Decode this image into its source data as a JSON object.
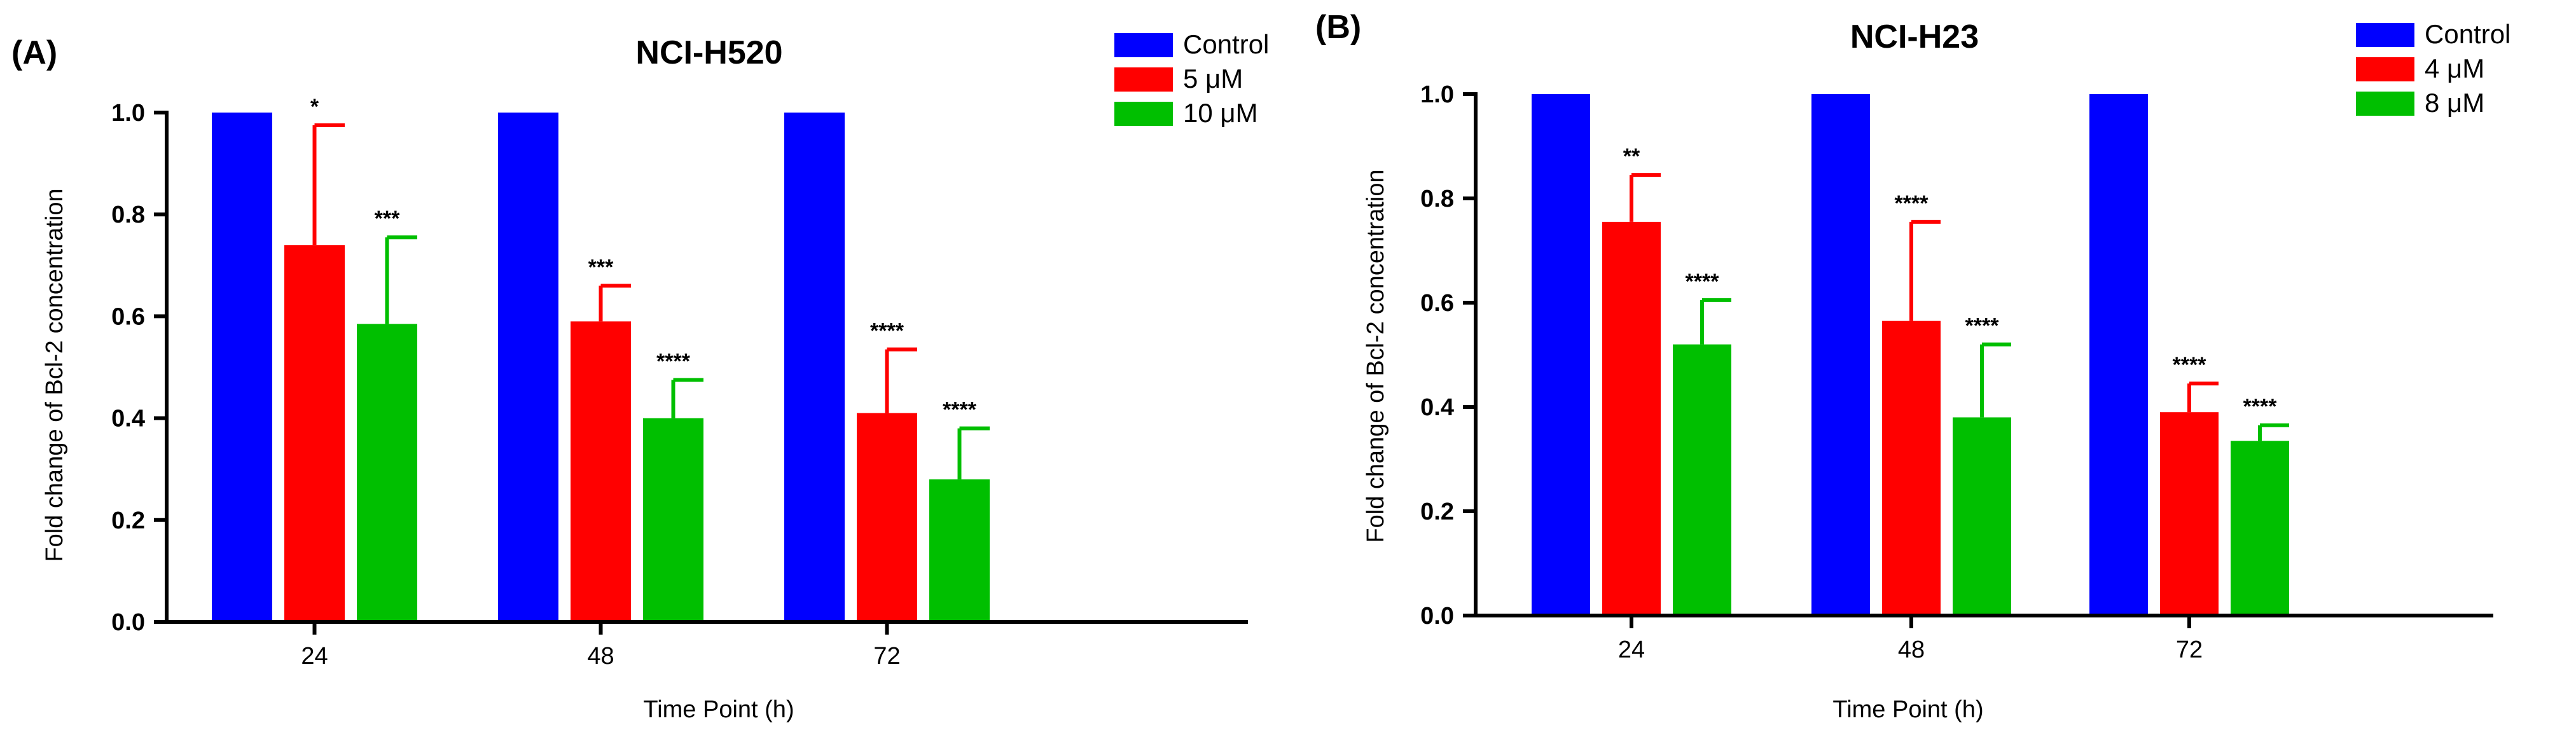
{
  "colors": {
    "Control": "#0000ff",
    "low": "#ff0000",
    "high": "#00bf00"
  },
  "chart_data": [
    {
      "type": "bar",
      "panel_label": "(A)",
      "title": "NCI-H520",
      "xlabel": "Time Point (h)",
      "ylabel": "Fold change of Bcl-2 concentration",
      "categories": [
        "24",
        "48",
        "72"
      ],
      "ylim": [
        0,
        1.0
      ],
      "yticks": [
        "0.0",
        "0.2",
        "0.4",
        "0.6",
        "0.8",
        "1.0"
      ],
      "legend_position": "top-right",
      "series": [
        {
          "name": "Control",
          "values": [
            1.0,
            1.0,
            1.0
          ],
          "errors": [
            0,
            0,
            0
          ],
          "significance": [
            "",
            "",
            ""
          ]
        },
        {
          "name": "5 μM",
          "values": [
            0.74,
            0.59,
            0.41
          ],
          "errors": [
            0.235,
            0.07,
            0.125
          ],
          "significance": [
            "*",
            "***",
            "****"
          ]
        },
        {
          "name": "10 μM",
          "values": [
            0.585,
            0.4,
            0.28
          ],
          "errors": [
            0.17,
            0.075,
            0.1
          ],
          "significance": [
            "***",
            "****",
            "****"
          ]
        }
      ]
    },
    {
      "type": "bar",
      "panel_label": "(B)",
      "title": "NCI-H23",
      "xlabel": "Time Point (h)",
      "ylabel": "Fold change of Bcl-2 concentration",
      "categories": [
        "24",
        "48",
        "72"
      ],
      "ylim": [
        0,
        1.0
      ],
      "yticks": [
        "0.0",
        "0.2",
        "0.4",
        "0.6",
        "0.8",
        "1.0"
      ],
      "legend_position": "top-right",
      "series": [
        {
          "name": "Control",
          "values": [
            1.0,
            1.0,
            1.0
          ],
          "errors": [
            0,
            0,
            0
          ],
          "significance": [
            "",
            "",
            ""
          ]
        },
        {
          "name": "4 μM",
          "values": [
            0.755,
            0.565,
            0.39
          ],
          "errors": [
            0.09,
            0.19,
            0.055
          ],
          "significance": [
            "**",
            "****",
            "****"
          ]
        },
        {
          "name": "8 μM",
          "values": [
            0.52,
            0.38,
            0.335
          ],
          "errors": [
            0.085,
            0.14,
            0.03
          ],
          "significance": [
            "****",
            "****",
            "****"
          ]
        }
      ]
    }
  ]
}
